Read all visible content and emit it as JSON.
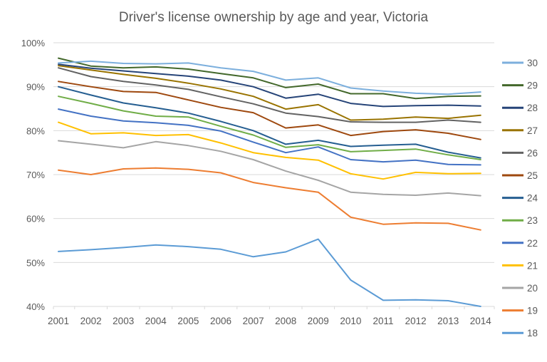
{
  "chart_data": {
    "type": "line",
    "title": "Driver's license ownership by age and year, Victoria",
    "xlabel": "",
    "ylabel": "",
    "x_labels": [
      "2001",
      "2002",
      "2003",
      "2004",
      "2005",
      "2006",
      "2007",
      "2008",
      "2009",
      "2010",
      "2011",
      "2012",
      "2013",
      "2014"
    ],
    "y_axis": {
      "min": 40,
      "max": 100,
      "step": 10,
      "tick_labels_top_to_bottom": [
        "100%",
        "90%",
        "80%",
        "70%",
        "60%",
        "50%",
        "40%"
      ],
      "unit": "percent"
    },
    "grid": "horizontal",
    "legend": {
      "position": "right",
      "order_top_to_bottom": [
        "30",
        "29",
        "28",
        "27",
        "26",
        "25",
        "24",
        "23",
        "22",
        "21",
        "20",
        "19",
        "18"
      ]
    },
    "series": [
      {
        "name": "18",
        "color": "#5B9BD5",
        "values": [
          52.5,
          52.9,
          53.4,
          54.0,
          53.6,
          53.0,
          51.3,
          52.4,
          55.3,
          46.0,
          41.4,
          41.5,
          41.3,
          40.0
        ]
      },
      {
        "name": "19",
        "color": "#ED7D31",
        "values": [
          71.0,
          70.0,
          71.3,
          71.5,
          71.2,
          70.4,
          68.2,
          67.0,
          66.0,
          60.3,
          58.7,
          59.0,
          58.9,
          57.4
        ]
      },
      {
        "name": "20",
        "color": "#A5A5A5",
        "values": [
          77.7,
          76.9,
          76.1,
          77.5,
          76.6,
          75.3,
          73.4,
          70.8,
          68.7,
          66.0,
          65.5,
          65.3,
          65.8,
          65.2
        ]
      },
      {
        "name": "21",
        "color": "#FFC000",
        "values": [
          81.9,
          79.3,
          79.5,
          78.9,
          79.1,
          77.2,
          75.0,
          73.9,
          73.3,
          70.2,
          69.0,
          70.5,
          70.2,
          70.3
        ]
      },
      {
        "name": "22",
        "color": "#4472C4",
        "values": [
          84.9,
          83.3,
          82.2,
          81.8,
          81.2,
          79.9,
          77.4,
          75.0,
          76.3,
          73.4,
          72.9,
          73.3,
          72.3,
          72.2
        ]
      },
      {
        "name": "23",
        "color": "#70AD47",
        "values": [
          87.8,
          86.2,
          84.5,
          83.3,
          83.1,
          81.0,
          79.0,
          76.2,
          76.8,
          75.2,
          75.5,
          75.8,
          74.5,
          73.4
        ]
      },
      {
        "name": "24",
        "color": "#255E91",
        "values": [
          90.0,
          88.1,
          86.3,
          85.2,
          84.0,
          82.1,
          80.0,
          76.9,
          77.8,
          76.4,
          76.7,
          76.9,
          75.1,
          73.8
        ]
      },
      {
        "name": "25",
        "color": "#9E480E",
        "values": [
          91.2,
          90.0,
          88.9,
          88.7,
          87.0,
          85.3,
          84.1,
          80.6,
          81.3,
          78.9,
          79.8,
          80.2,
          79.4,
          78.0
        ]
      },
      {
        "name": "26",
        "color": "#636363",
        "values": [
          94.3,
          92.3,
          91.2,
          90.4,
          89.4,
          87.7,
          86.1,
          84.0,
          83.2,
          82.0,
          81.9,
          81.9,
          82.4,
          81.9
        ]
      },
      {
        "name": "27",
        "color": "#997300",
        "values": [
          94.8,
          93.8,
          92.8,
          91.9,
          90.8,
          89.5,
          87.8,
          84.9,
          85.9,
          82.4,
          82.6,
          83.1,
          82.8,
          83.5
        ]
      },
      {
        "name": "28",
        "color": "#264478",
        "values": [
          95.1,
          94.2,
          93.6,
          93.0,
          92.4,
          91.5,
          90.0,
          87.4,
          88.3,
          86.2,
          85.5,
          85.7,
          85.8,
          85.6
        ]
      },
      {
        "name": "29",
        "color": "#43682B",
        "values": [
          96.5,
          94.7,
          94.3,
          94.5,
          94.0,
          93.0,
          92.0,
          89.8,
          90.6,
          88.4,
          88.4,
          87.3,
          87.8,
          87.9
        ]
      },
      {
        "name": "30",
        "color": "#7CAFDD",
        "values": [
          95.4,
          95.8,
          95.3,
          95.2,
          95.4,
          94.3,
          93.5,
          91.5,
          92.0,
          89.7,
          89.0,
          88.5,
          88.3,
          88.8
        ]
      }
    ]
  },
  "colors": {
    "title_text": "#595959",
    "axis_text": "#595959",
    "gridline": "#D9D9D9",
    "background": "#FFFFFF"
  }
}
